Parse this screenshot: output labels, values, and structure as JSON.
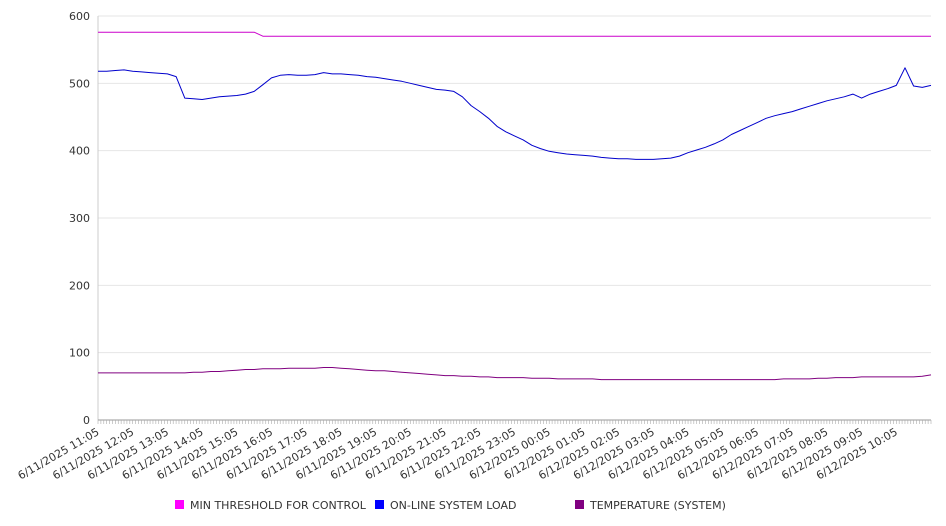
{
  "chart_data": {
    "type": "line",
    "title": "",
    "xlabel": "",
    "ylabel": "",
    "ylim": [
      0,
      600
    ],
    "y_ticks": [
      "0",
      "100",
      "200",
      "300",
      "400",
      "500",
      "600"
    ],
    "x_ticks": [
      "6/11/2025 11:05",
      "6/11/2025 12:05",
      "6/11/2025 13:05",
      "6/11/2025 14:05",
      "6/11/2025 15:05",
      "6/11/2025 16:05",
      "6/11/2025 17:05",
      "6/11/2025 18:05",
      "6/11/2025 19:05",
      "6/11/2025 20:05",
      "6/11/2025 21:05",
      "6/11/2025 22:05",
      "6/11/2025 23:05",
      "6/12/2025 00:05",
      "6/12/2025 01:05",
      "6/12/2025 02:05",
      "6/12/2025 03:05",
      "6/12/2025 04:05",
      "6/12/2025 05:05",
      "6/12/2025 06:05",
      "6/12/2025 07:05",
      "6/12/2025 08:05",
      "6/12/2025 09:05",
      "6/12/2025 10:05"
    ],
    "grid": true,
    "legend_position": "bottom",
    "x_hours": [
      0,
      0.25,
      0.5,
      0.75,
      1,
      1.25,
      1.5,
      1.75,
      2,
      2.25,
      2.5,
      2.75,
      3,
      3.25,
      3.5,
      3.75,
      4,
      4.25,
      4.5,
      4.75,
      5,
      5.25,
      5.5,
      5.75,
      6,
      6.25,
      6.5,
      6.75,
      7,
      7.25,
      7.5,
      7.75,
      8,
      8.25,
      8.5,
      8.75,
      9,
      9.25,
      9.5,
      9.75,
      10,
      10.25,
      10.5,
      10.75,
      11,
      11.25,
      11.5,
      11.75,
      12,
      12.25,
      12.5,
      12.75,
      13,
      13.25,
      13.5,
      13.75,
      14,
      14.25,
      14.5,
      14.75,
      15,
      15.25,
      15.5,
      15.75,
      16,
      16.25,
      16.5,
      16.75,
      17,
      17.25,
      17.5,
      17.75,
      18,
      18.25,
      18.5,
      18.75,
      19,
      19.25,
      19.5,
      19.75,
      20,
      20.25,
      20.5,
      20.75,
      21,
      21.25,
      21.5,
      21.75,
      22,
      22.25,
      22.5,
      22.75,
      23,
      23.25,
      23.5,
      23.75,
      24
    ],
    "series": [
      {
        "name": "MIN THRESHOLD FOR CONTROL",
        "color": "#cc00cc",
        "legend_color": "#ff00ff",
        "values": [
          576,
          576,
          576,
          576,
          576,
          576,
          576,
          576,
          576,
          576,
          576,
          576,
          576,
          576,
          576,
          576,
          576,
          576,
          576,
          570,
          570,
          570,
          570,
          570,
          570,
          570,
          570,
          570,
          570,
          570,
          570,
          570,
          570,
          570,
          570,
          570,
          570,
          570,
          570,
          570,
          570,
          570,
          570,
          570,
          570,
          570,
          570,
          570,
          570,
          570,
          570,
          570,
          570,
          570,
          570,
          570,
          570,
          570,
          570,
          570,
          570,
          570,
          570,
          570,
          570,
          570,
          570,
          570,
          570,
          570,
          570,
          570,
          570,
          570,
          570,
          570,
          570,
          570,
          570,
          570,
          570,
          570,
          570,
          570,
          570,
          570,
          570,
          570,
          570,
          570,
          570,
          570,
          570,
          570,
          570,
          570,
          570
        ]
      },
      {
        "name": "ON-LINE SYSTEM LOAD",
        "color": "#0000cc",
        "legend_color": "#0000ff",
        "values": [
          518,
          518,
          519,
          520,
          518,
          517,
          516,
          515,
          514,
          510,
          478,
          477,
          476,
          478,
          480,
          481,
          482,
          484,
          488,
          498,
          508,
          512,
          513,
          512,
          512,
          513,
          516,
          514,
          514,
          513,
          512,
          510,
          509,
          507,
          505,
          503,
          500,
          497,
          494,
          491,
          490,
          488,
          480,
          467,
          458,
          448,
          436,
          428,
          422,
          416,
          408,
          403,
          399,
          397,
          395,
          394,
          393,
          392,
          390,
          389,
          388,
          388,
          387,
          387,
          387,
          388,
          389,
          392,
          397,
          401,
          405,
          410,
          416,
          424,
          430,
          436,
          442,
          448,
          452,
          455,
          458,
          462,
          466,
          470,
          474,
          477,
          480,
          484,
          478,
          484,
          488,
          492,
          497,
          523,
          496,
          494,
          497
        ]
      },
      {
        "name": "TEMPERATURE (SYSTEM)",
        "color": "#800080",
        "legend_color": "#800080",
        "values": [
          70,
          70,
          70,
          70,
          70,
          70,
          70,
          70,
          70,
          70,
          70,
          71,
          71,
          72,
          72,
          73,
          74,
          75,
          75,
          76,
          76,
          76,
          77,
          77,
          77,
          77,
          78,
          78,
          77,
          76,
          75,
          74,
          73,
          73,
          72,
          71,
          70,
          69,
          68,
          67,
          66,
          66,
          65,
          65,
          64,
          64,
          63,
          63,
          63,
          63,
          62,
          62,
          62,
          61,
          61,
          61,
          61,
          61,
          60,
          60,
          60,
          60,
          60,
          60,
          60,
          60,
          60,
          60,
          60,
          60,
          60,
          60,
          60,
          60,
          60,
          60,
          60,
          60,
          60,
          61,
          61,
          61,
          61,
          62,
          62,
          63,
          63,
          63,
          64,
          64,
          64,
          64,
          64,
          64,
          64,
          65,
          67
        ]
      }
    ]
  }
}
